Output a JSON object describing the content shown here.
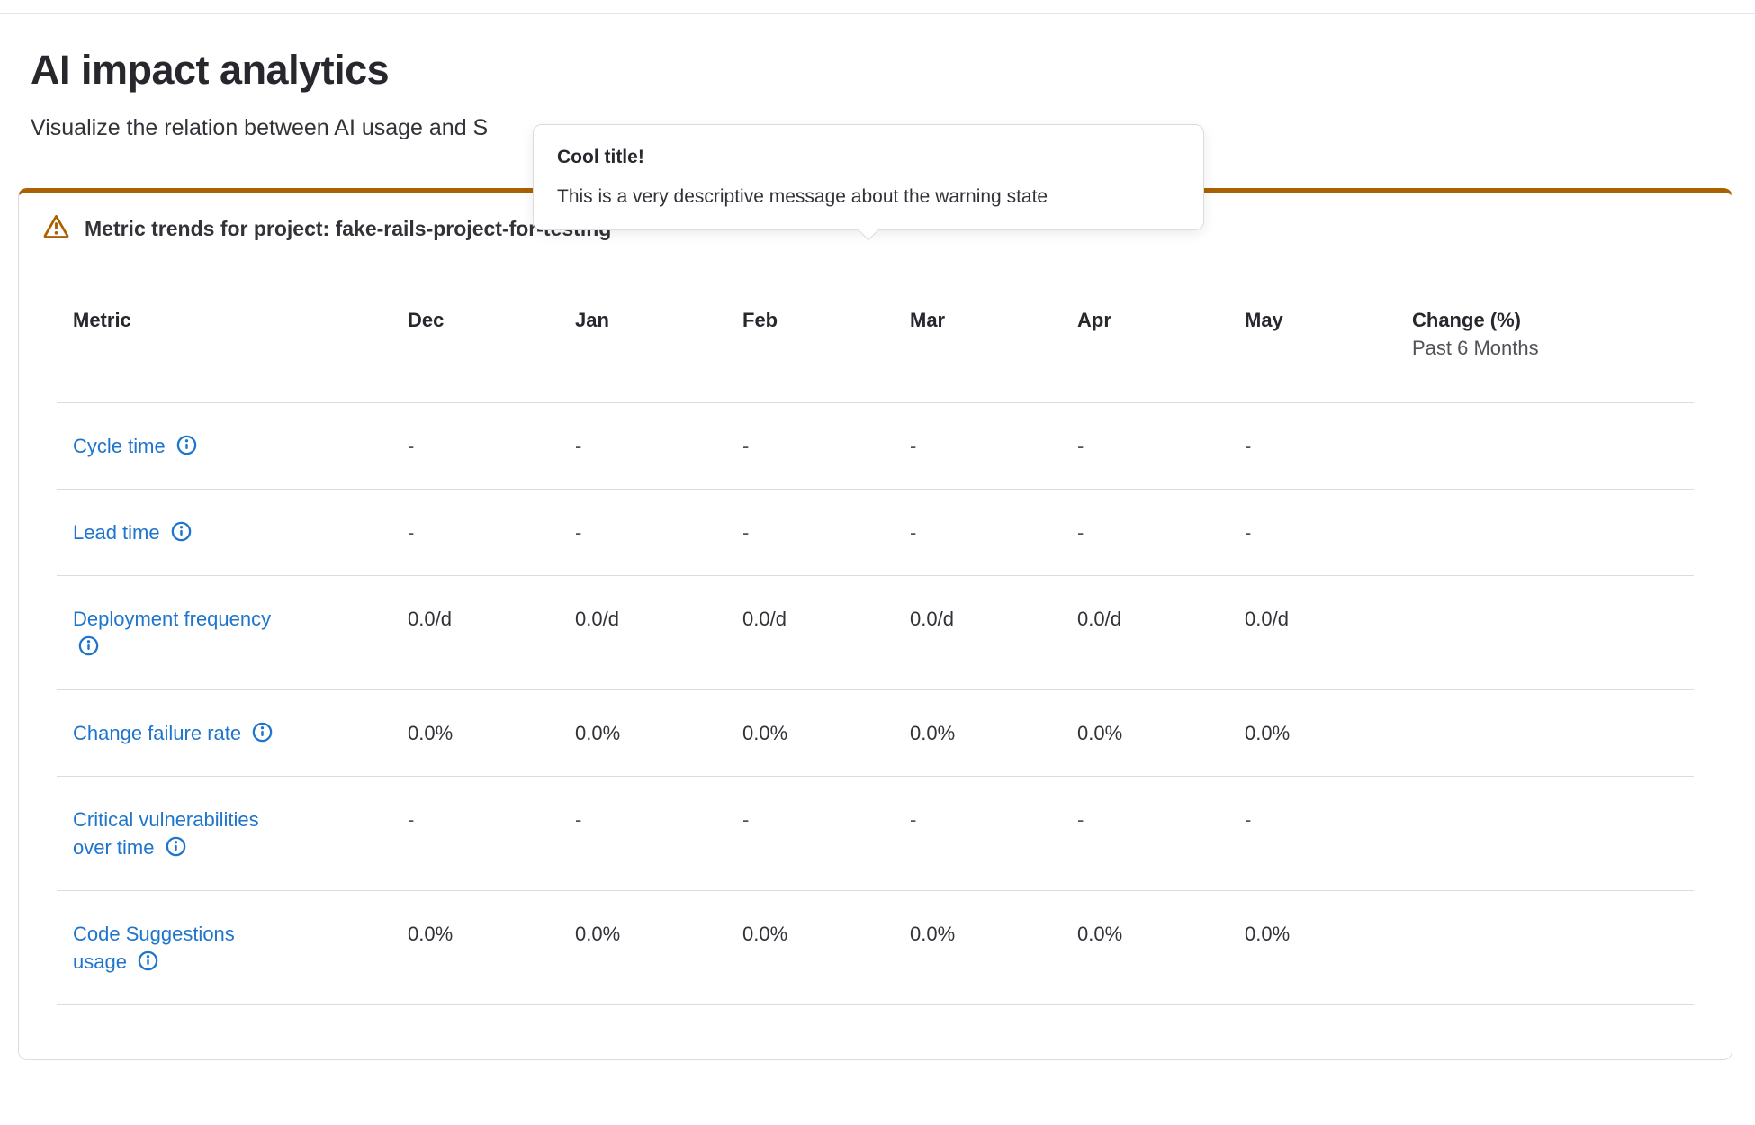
{
  "page": {
    "title": "AI impact analytics",
    "subtitle": "Visualize the relation between AI usage and S"
  },
  "popover": {
    "title": "Cool title!",
    "message": "This is a very descriptive message about the warning state"
  },
  "panel": {
    "heading": "Metric trends for project: fake-rails-project-for-testing"
  },
  "table": {
    "header": {
      "metric": "Metric",
      "months": [
        "Dec",
        "Jan",
        "Feb",
        "Mar",
        "Apr",
        "May"
      ],
      "change": "Change (%)",
      "change_period": "Past 6 Months"
    },
    "rows": [
      {
        "name": "Cycle time",
        "values": [
          "-",
          "-",
          "-",
          "-",
          "-",
          "-"
        ],
        "change": ""
      },
      {
        "name": "Lead time",
        "values": [
          "-",
          "-",
          "-",
          "-",
          "-",
          "-"
        ],
        "change": ""
      },
      {
        "name": "Deployment frequency",
        "values": [
          "0.0/d",
          "0.0/d",
          "0.0/d",
          "0.0/d",
          "0.0/d",
          "0.0/d"
        ],
        "change": ""
      },
      {
        "name": "Change failure rate",
        "values": [
          "0.0%",
          "0.0%",
          "0.0%",
          "0.0%",
          "0.0%",
          "0.0%"
        ],
        "change": ""
      },
      {
        "name": "Critical vulnerabilities over time",
        "values": [
          "-",
          "-",
          "-",
          "-",
          "-",
          "-"
        ],
        "change": ""
      },
      {
        "name": "Code Suggestions usage",
        "values": [
          "0.0%",
          "0.0%",
          "0.0%",
          "0.0%",
          "0.0%",
          "0.0%"
        ],
        "change": ""
      }
    ]
  },
  "icons": {
    "panel_status": "warning-triangle-icon",
    "metric_help": "information-circle-icon",
    "popover_pointer": "caret-down-icon"
  },
  "colors": {
    "accent_warning": "#ab6100",
    "link": "#1f75cb",
    "text_primary": "#28272d",
    "text_secondary": "#333238",
    "text_muted": "#535158",
    "divider": "#dcdcde",
    "bg": "#ffffff"
  }
}
